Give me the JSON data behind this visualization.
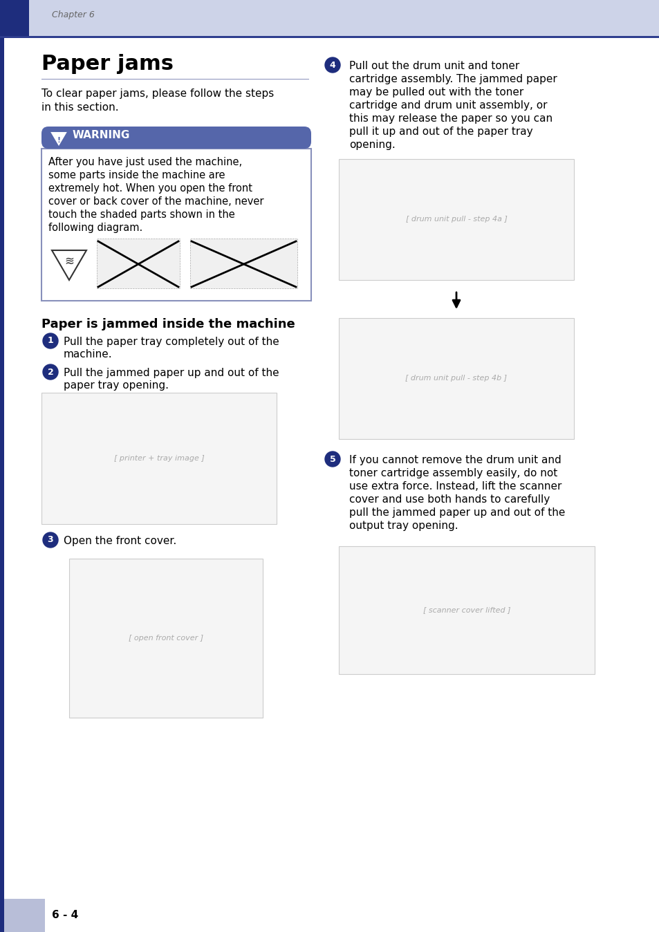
{
  "page_bg": "#ffffff",
  "header_bar_color": "#cdd3e8",
  "header_dark_bar": "#1e2d7d",
  "header_line_color": "#2e3d8e",
  "header_text": "Chapter 6",
  "header_text_color": "#666666",
  "footer_bar_color": "#b8bed8",
  "footer_text": "6 - 4",
  "footer_text_color": "#000000",
  "left_bar_color": "#1e2d7d",
  "title": "Paper jams",
  "title_color": "#000000",
  "title_line_color": "#8890bb",
  "intro_text_line1": "To clear paper jams, please follow the steps",
  "intro_text_line2": "in this section.",
  "warning_header_bg": "#5566aa",
  "warning_header_text": "WARNING",
  "warning_body_border": "#8890bb",
  "warning_lines": [
    "After you have just used the machine,",
    "some parts inside the machine are",
    "extremely hot. When you open the front",
    "cover or back cover of the machine, never",
    "touch the shaded parts shown in the",
    "following diagram."
  ],
  "section_title": "Paper is jammed inside the machine",
  "step1_line1": "Pull the paper tray completely out of the",
  "step1_line2": "machine.",
  "step2_line1": "Pull the jammed paper up and out of the",
  "step2_line2": "paper tray opening.",
  "step3_text": "Open the front cover.",
  "step4_lines": [
    "Pull out the drum unit and toner",
    "cartridge assembly. The jammed paper",
    "may be pulled out with the toner",
    "cartridge and drum unit assembly, or",
    "this may release the paper so you can",
    "pull it up and out of the paper tray",
    "opening."
  ],
  "step5_lines": [
    "If you cannot remove the drum unit and",
    "toner cartridge assembly easily, do not",
    "use extra force. Instead, lift the scanner",
    "cover and use both hands to carefully",
    "pull the jammed paper up and out of the",
    "output tray opening."
  ],
  "step_circle_color": "#1e2d7d",
  "step_text_color": "#000000",
  "figsize": [
    9.54,
    13.48
  ],
  "dpi": 100
}
